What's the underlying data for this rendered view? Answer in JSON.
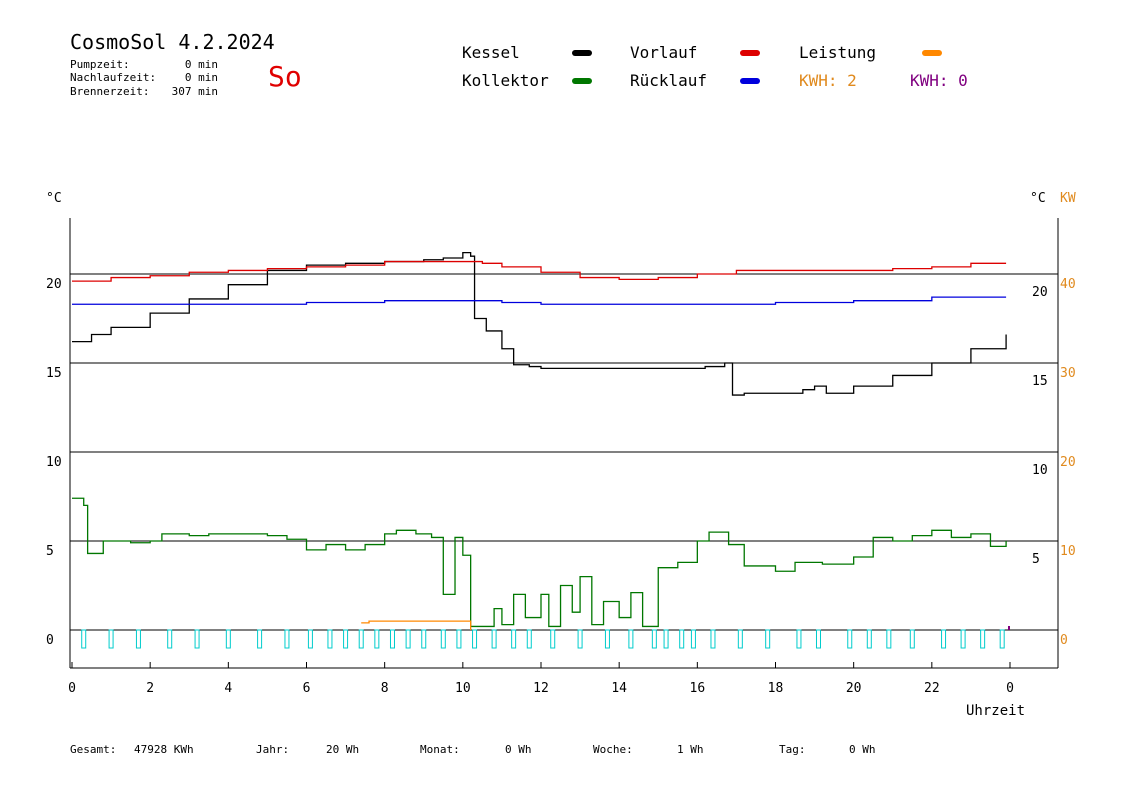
{
  "header": {
    "title": "CosmoSol 4.2.2024",
    "day": "So",
    "stats": [
      {
        "label": "Pumpzeit:",
        "value": "0 min"
      },
      {
        "label": "Nachlaufzeit:",
        "value": "0 min"
      },
      {
        "label": "Brennerzeit:",
        "value": "307 min"
      }
    ]
  },
  "legend": {
    "kessel": "Kessel",
    "kollektor": "Kollektor",
    "vorlauf": "Vorlauf",
    "ruecklauf": "Rücklauf",
    "leistung": "Leistung",
    "kwh1": "KWH: 2",
    "kwh2": "KWH: 0"
  },
  "colors": {
    "kessel": "#000000",
    "kollektor": "#007700",
    "vorlauf": "#dd0000",
    "ruecklauf": "#0000dd",
    "leistung": "#ff8800",
    "kwh2": "#800080",
    "pump": "#00cccc"
  },
  "axis_labels": {
    "left_unit": "°C",
    "right_unit": "°C",
    "right_unit2": "KW",
    "xlabel": "Uhrzeit"
  },
  "footer": [
    {
      "label": "Gesamt:",
      "value": "47928 KWh"
    },
    {
      "label": "Jahr:",
      "value": "20 Wh"
    },
    {
      "label": "Monat:",
      "value": "0 Wh"
    },
    {
      "label": "Woche:",
      "value": "1 Wh"
    },
    {
      "label": "Tag:",
      "value": "0 Wh"
    }
  ],
  "chart_data": {
    "type": "line",
    "xlabel": "Uhrzeit",
    "xlim": [
      0,
      24
    ],
    "ylim": [
      -1.5,
      23.5
    ],
    "x_ticks": [
      "0",
      "2",
      "4",
      "6",
      "8",
      "10",
      "12",
      "14",
      "16",
      "18",
      "20",
      "22",
      "0"
    ],
    "y_ticks_left": [
      0,
      5,
      10,
      15,
      20
    ],
    "y_ticks_right_temp": [
      5,
      10,
      15,
      20
    ],
    "y_ticks_right_kw": [
      0,
      10,
      20,
      30,
      40
    ],
    "grid_y": [
      0,
      5,
      10,
      15,
      20
    ],
    "series": [
      {
        "name": "Kessel",
        "points": [
          [
            0,
            16.2
          ],
          [
            0.5,
            16.6
          ],
          [
            1,
            17.0
          ],
          [
            2,
            17.8
          ],
          [
            3,
            18.6
          ],
          [
            4,
            19.4
          ],
          [
            5,
            20.2
          ],
          [
            6,
            20.5
          ],
          [
            7,
            20.6
          ],
          [
            8,
            20.7
          ],
          [
            9,
            20.8
          ],
          [
            9.5,
            20.9
          ],
          [
            10,
            21.2
          ],
          [
            10.2,
            21.0
          ],
          [
            10.3,
            17.5
          ],
          [
            10.6,
            16.8
          ],
          [
            11.0,
            15.8
          ],
          [
            11.3,
            14.9
          ],
          [
            11.7,
            14.8
          ],
          [
            12,
            14.7
          ],
          [
            13,
            14.7
          ],
          [
            14,
            14.7
          ],
          [
            15,
            14.7
          ],
          [
            15.8,
            14.7
          ],
          [
            16.2,
            14.8
          ],
          [
            16.7,
            15.0
          ],
          [
            16.9,
            13.2
          ],
          [
            17.2,
            13.3
          ],
          [
            18,
            13.3
          ],
          [
            18.7,
            13.5
          ],
          [
            19.0,
            13.7
          ],
          [
            19.3,
            13.3
          ],
          [
            20,
            13.7
          ],
          [
            21,
            14.3
          ],
          [
            22,
            15.0
          ],
          [
            23,
            15.8
          ],
          [
            23.9,
            16.6
          ]
        ]
      },
      {
        "name": "Vorlauf",
        "points": [
          [
            0,
            19.6
          ],
          [
            1,
            19.8
          ],
          [
            2,
            19.9
          ],
          [
            3,
            20.1
          ],
          [
            4,
            20.2
          ],
          [
            5,
            20.3
          ],
          [
            6,
            20.4
          ],
          [
            7,
            20.5
          ],
          [
            8,
            20.7
          ],
          [
            9,
            20.7
          ],
          [
            10,
            20.7
          ],
          [
            10.5,
            20.6
          ],
          [
            11,
            20.4
          ],
          [
            12,
            20.1
          ],
          [
            13,
            19.8
          ],
          [
            14,
            19.7
          ],
          [
            15,
            19.8
          ],
          [
            16,
            20.0
          ],
          [
            17,
            20.2
          ],
          [
            18,
            20.2
          ],
          [
            19,
            20.2
          ],
          [
            20,
            20.2
          ],
          [
            21,
            20.3
          ],
          [
            22,
            20.4
          ],
          [
            23,
            20.6
          ],
          [
            23.9,
            20.6
          ]
        ]
      },
      {
        "name": "Rücklauf",
        "points": [
          [
            0,
            18.3
          ],
          [
            2,
            18.3
          ],
          [
            4,
            18.3
          ],
          [
            6,
            18.4
          ],
          [
            8,
            18.5
          ],
          [
            10,
            18.5
          ],
          [
            11,
            18.4
          ],
          [
            12,
            18.3
          ],
          [
            14,
            18.3
          ],
          [
            16,
            18.3
          ],
          [
            18,
            18.4
          ],
          [
            20,
            18.5
          ],
          [
            22,
            18.7
          ],
          [
            23.9,
            18.7
          ]
        ]
      },
      {
        "name": "Kollektor",
        "points": [
          [
            0,
            7.4
          ],
          [
            0.3,
            7.0
          ],
          [
            0.4,
            4.3
          ],
          [
            0.8,
            5.0
          ],
          [
            1.5,
            4.9
          ],
          [
            2,
            5.0
          ],
          [
            2.3,
            5.4
          ],
          [
            3,
            5.3
          ],
          [
            3.5,
            5.4
          ],
          [
            4,
            5.4
          ],
          [
            5,
            5.3
          ],
          [
            5.5,
            5.1
          ],
          [
            6,
            4.5
          ],
          [
            6.5,
            4.8
          ],
          [
            7,
            4.5
          ],
          [
            7.5,
            4.8
          ],
          [
            8,
            5.4
          ],
          [
            8.3,
            5.6
          ],
          [
            8.8,
            5.4
          ],
          [
            9.2,
            5.2
          ],
          [
            9.5,
            2.0
          ],
          [
            9.8,
            5.2
          ],
          [
            10,
            4.2
          ],
          [
            10.2,
            0.2
          ],
          [
            10.8,
            1.2
          ],
          [
            11,
            0.3
          ],
          [
            11.3,
            2.0
          ],
          [
            11.6,
            0.7
          ],
          [
            12,
            2.0
          ],
          [
            12.2,
            0.2
          ],
          [
            12.5,
            2.5
          ],
          [
            12.8,
            1.0
          ],
          [
            13,
            3.0
          ],
          [
            13.3,
            0.3
          ],
          [
            13.6,
            1.6
          ],
          [
            14,
            0.7
          ],
          [
            14.3,
            2.1
          ],
          [
            14.6,
            0.2
          ],
          [
            15,
            3.5
          ],
          [
            15.5,
            3.8
          ],
          [
            16,
            5.0
          ],
          [
            16.3,
            5.5
          ],
          [
            16.8,
            4.8
          ],
          [
            17.2,
            3.6
          ],
          [
            18,
            3.3
          ],
          [
            18.5,
            3.8
          ],
          [
            19.2,
            3.7
          ],
          [
            20,
            4.1
          ],
          [
            20.5,
            5.2
          ],
          [
            21,
            5.0
          ],
          [
            21.5,
            5.3
          ],
          [
            22,
            5.6
          ],
          [
            22.5,
            5.2
          ],
          [
            23,
            5.4
          ],
          [
            23.5,
            4.7
          ],
          [
            23.9,
            5.0
          ]
        ]
      },
      {
        "name": "Leistung",
        "points": [
          [
            7.4,
            0.4
          ],
          [
            7.6,
            0.5
          ],
          [
            8,
            0.5
          ],
          [
            9,
            0.5
          ],
          [
            10,
            0.5
          ],
          [
            10.2,
            0.0
          ]
        ]
      }
    ],
    "pump_pulses_hours": [
      0.3,
      1.0,
      1.7,
      2.5,
      3.2,
      4.0,
      4.8,
      5.5,
      6.1,
      6.6,
      7.0,
      7.4,
      7.8,
      8.2,
      8.6,
      9.0,
      9.5,
      9.9,
      10.3,
      10.8,
      11.3,
      11.7,
      12.3,
      13.0,
      13.7,
      14.3,
      14.9,
      15.2,
      15.6,
      15.9,
      16.4,
      17.1,
      17.8,
      18.6,
      19.1,
      19.9,
      20.4,
      20.9,
      21.5,
      22.3,
      22.8,
      23.3,
      23.8
    ]
  }
}
